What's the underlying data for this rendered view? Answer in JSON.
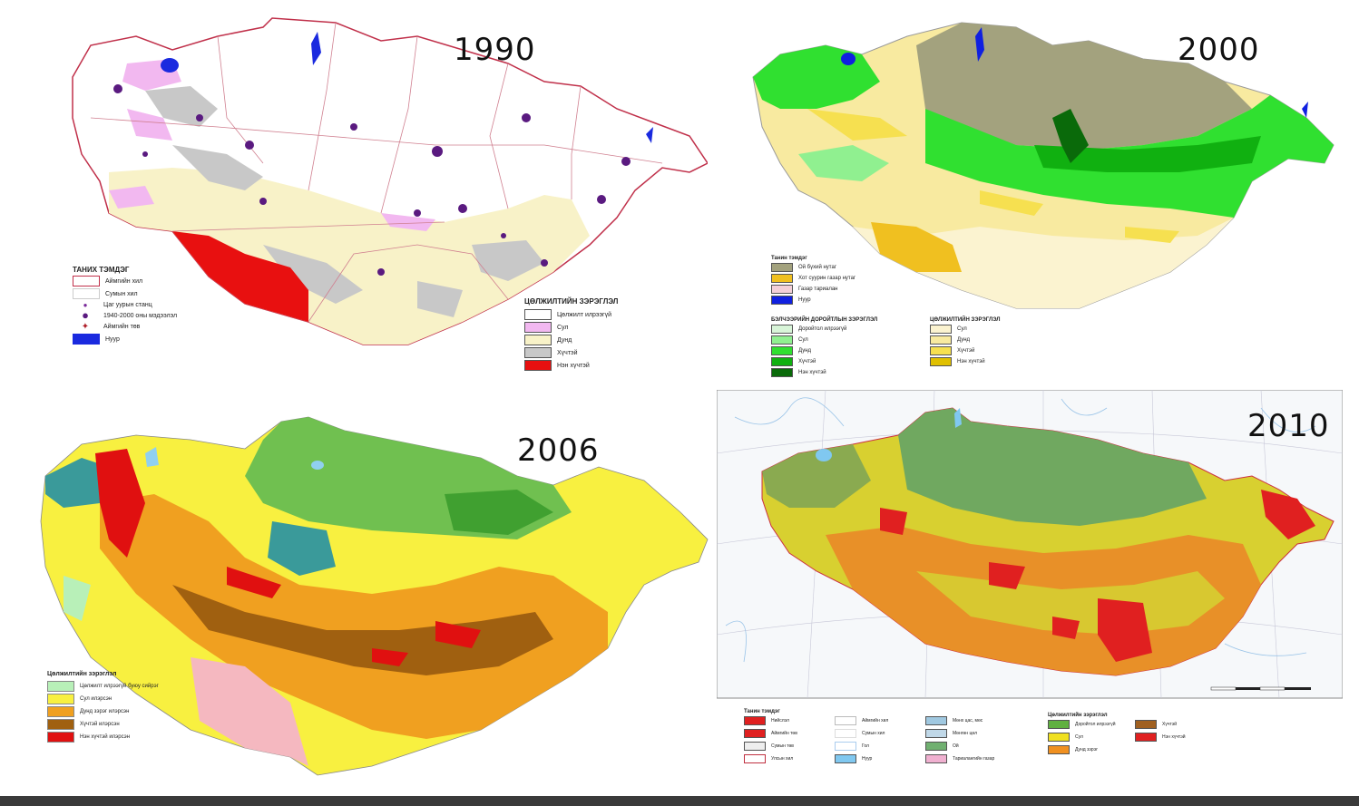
{
  "panels": {
    "p1990": {
      "year": "1990",
      "legend_left": {
        "title": "ТАНИХ ТЭМДЭГ",
        "items": [
          {
            "label": "Аймгийн хил",
            "color": "#ffffff",
            "stroke": "#c0304a"
          },
          {
            "label": "Сумын хил",
            "color": "#ffffff",
            "stroke": "#cccccc"
          },
          {
            "label": "Цаг уурын станц",
            "color": "#7a2a9a",
            "shape": "dot"
          },
          {
            "label": "1940-2000 оны мэдээлэл",
            "color": "#5a1a80",
            "shape": "bigdot"
          },
          {
            "label": "Аймгийн төв",
            "color": "#b0202a",
            "shape": "star"
          },
          {
            "label": "Нуур",
            "color": "#1a2adf"
          }
        ]
      },
      "legend_right": {
        "title": "ЦӨЛЖИЛТИЙН ЗЭРЭГЛЭЛ",
        "items": [
          {
            "label": "Цөлжилт илрээгүй",
            "color": "#ffffff"
          },
          {
            "label": "Сул",
            "color": "#f2b8f0"
          },
          {
            "label": "Дунд",
            "color": "#f8f2c8"
          },
          {
            "label": "Хүчтэй",
            "color": "#c8c8c8"
          },
          {
            "label": "Нэн хүчтэй",
            "color": "#e81010"
          }
        ]
      }
    },
    "p2000": {
      "year": "2000",
      "legend_a": {
        "title": "Танин тэмдэг",
        "items": [
          {
            "label": "Ой бүхий нутаг",
            "color": "#a3a27e"
          },
          {
            "label": "Хот суурин газар нутаг",
            "color": "#f0c020"
          },
          {
            "label": "Газар тариалан",
            "color": "#f4d0d8"
          },
          {
            "label": "Нуур",
            "color": "#1020e0"
          }
        ]
      },
      "legend_b": {
        "title": "БЭЛЧЭЭРИЙН ДОРОЙТЛЫН ЗЭРЭГЛЭЛ",
        "items": [
          {
            "label": "Доройтол илрээгүй",
            "color": "#d8f5d8"
          },
          {
            "label": "Сул",
            "color": "#90f090"
          },
          {
            "label": "Дунд",
            "color": "#30e030"
          },
          {
            "label": "Хүчтэй",
            "color": "#10b010"
          },
          {
            "label": "Нэн хүчтэй",
            "color": "#0a6a0a"
          }
        ]
      },
      "legend_c": {
        "title": "ЦӨЛЖИЛТИЙН ЗЭРЭГЛЭЛ",
        "items": [
          {
            "label": "Сул",
            "color": "#fbf3d0"
          },
          {
            "label": "Дунд",
            "color": "#f8eaa0"
          },
          {
            "label": "Хүчтэй",
            "color": "#f6e050"
          },
          {
            "label": "Нэн хүчтэй",
            "color": "#e0c000"
          }
        ]
      }
    },
    "p2006": {
      "year": "2006",
      "legend": {
        "title": "Цөлжилтийн зэрэглэл",
        "items": [
          {
            "label": "Цөлжилт илрээгүй буюу сийрэг",
            "color": "#b8f0b8"
          },
          {
            "label": "Сул илэрсэн",
            "color": "#f8f040"
          },
          {
            "label": "Дунд зэрэг илэрсэн",
            "color": "#f0a020"
          },
          {
            "label": "Хүчтэй илэрсэн",
            "color": "#a06010"
          },
          {
            "label": "Нэн хүчтэй илэрсэн",
            "color": "#e01010"
          }
        ]
      }
    },
    "p2010": {
      "year": "2010",
      "legend_a": {
        "title": "Танин тэмдэг",
        "items": [
          {
            "label": "Нийслэл",
            "color": "#e02020",
            "shape": "dot"
          },
          {
            "label": "Аймгийн төв",
            "color": "#e02020",
            "shape": "dot"
          },
          {
            "label": "Сумын төв",
            "color": "#cccccc",
            "shape": "dot"
          },
          {
            "label": "Улсын хил",
            "color": "#ffffff",
            "stroke": "#c03040"
          },
          {
            "label": "Аймгийн хил",
            "color": "#ffffff",
            "stroke": "#bbbbbb"
          },
          {
            "label": "Сумын хил",
            "color": "#ffffff",
            "stroke": "#dddddd"
          },
          {
            "label": "Гол",
            "color": "#ffffff",
            "stroke": "#aaccee"
          },
          {
            "label": "Нуур",
            "color": "#80c8f0"
          },
          {
            "label": "Мөнх цас, мөс",
            "color": "#a0c8e0"
          },
          {
            "label": "Мөнгөн цөл",
            "color": "#c0d8e8"
          },
          {
            "label": "Ой",
            "color": "#70b070"
          },
          {
            "label": "Тариалангийн газар",
            "color": "#f0b0d0"
          }
        ]
      },
      "legend_b": {
        "title": "Цөлжилтийн зэрэглэл",
        "items": [
          {
            "label": "Доройтол илрээгүй",
            "color": "#60b040"
          },
          {
            "label": "Сул",
            "color": "#f0e020"
          },
          {
            "label": "Дунд зэрэг",
            "color": "#f09020"
          },
          {
            "label": "Хүчтэй",
            "color": "#a06020"
          },
          {
            "label": "Нэн хүчтэй",
            "color": "#e02020"
          }
        ]
      }
    }
  }
}
